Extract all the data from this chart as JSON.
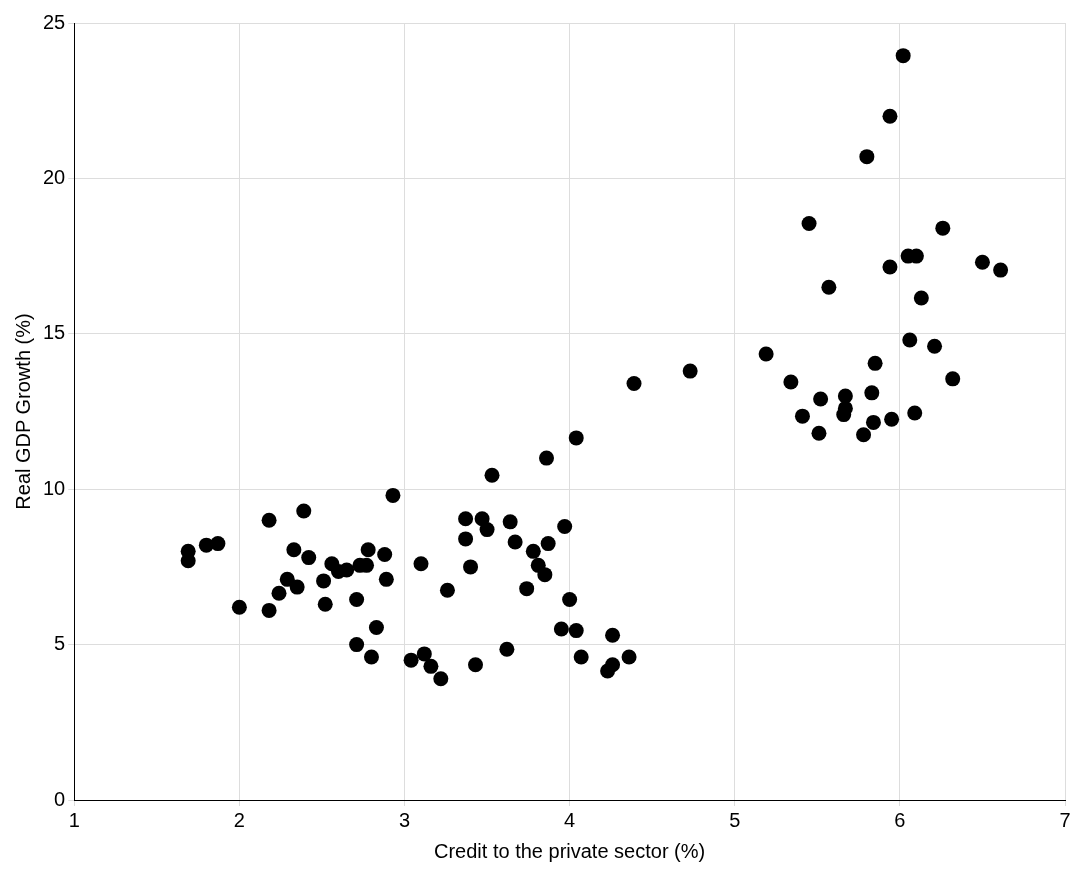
{
  "chart_data": {
    "type": "scatter",
    "xlabel": "Credit to the private sector (%)",
    "ylabel": "Real GDP Growth (%)",
    "xlim": [
      1,
      7
    ],
    "xticks": [
      1,
      2,
      3,
      4,
      5,
      6,
      7
    ],
    "ylim": [
      0,
      25
    ],
    "yticks": [
      0,
      5,
      10,
      15,
      20,
      25
    ],
    "grid": true,
    "marker": "circle",
    "series": [
      {
        "color": "#000000",
        "x": [
          1.69,
          1.69,
          1.8,
          1.87,
          2.0,
          2.18,
          2.18,
          2.24,
          2.29,
          2.33,
          2.35,
          2.39,
          2.42,
          2.51,
          2.52,
          2.56,
          2.6,
          2.65,
          2.71,
          2.71,
          2.73,
          2.77,
          2.78,
          2.8,
          2.83,
          2.88,
          2.89,
          2.93,
          3.04,
          3.1,
          3.12,
          3.16,
          3.22,
          3.26,
          3.37,
          3.37,
          3.4,
          3.43,
          3.47,
          3.5,
          3.53,
          3.62,
          3.64,
          3.67,
          3.74,
          3.78,
          3.81,
          3.85,
          3.86,
          3.87,
          3.95,
          3.97,
          4.0,
          4.04,
          4.04,
          4.07,
          4.23,
          4.26,
          4.26,
          4.36,
          4.39,
          4.73,
          6.02,
          5.94,
          5.8,
          5.45,
          6.26,
          6.05,
          6.1,
          6.5,
          6.61,
          5.94,
          5.57,
          6.13,
          6.06,
          6.21,
          5.19,
          5.85,
          5.34,
          6.32,
          5.52,
          5.67,
          5.83,
          5.67,
          5.66,
          5.41,
          6.09,
          5.84,
          5.95,
          5.51,
          5.78
        ],
        "values": [
          8.0,
          7.7,
          8.2,
          8.25,
          6.2,
          9.0,
          6.1,
          6.65,
          7.1,
          8.05,
          6.85,
          9.3,
          7.8,
          7.05,
          6.3,
          7.6,
          7.35,
          7.4,
          6.45,
          5.0,
          7.55,
          7.55,
          8.05,
          4.6,
          5.55,
          7.9,
          7.1,
          9.8,
          4.5,
          7.6,
          4.7,
          4.3,
          3.9,
          6.75,
          9.05,
          8.4,
          7.5,
          4.35,
          9.05,
          8.7,
          10.45,
          4.85,
          8.95,
          8.3,
          6.8,
          8.0,
          7.55,
          7.25,
          11.0,
          8.25,
          5.5,
          8.8,
          6.45,
          5.45,
          11.65,
          4.6,
          4.15,
          5.3,
          4.35,
          4.6,
          13.4,
          13.8,
          23.95,
          22.0,
          20.7,
          18.55,
          18.4,
          17.5,
          17.5,
          17.3,
          17.05,
          17.15,
          16.5,
          16.15,
          14.8,
          14.6,
          14.35,
          14.05,
          13.45,
          13.55,
          12.9,
          13.0,
          13.1,
          12.6,
          12.4,
          12.35,
          12.45,
          12.15,
          12.25,
          11.8,
          11.75
        ]
      }
    ]
  }
}
